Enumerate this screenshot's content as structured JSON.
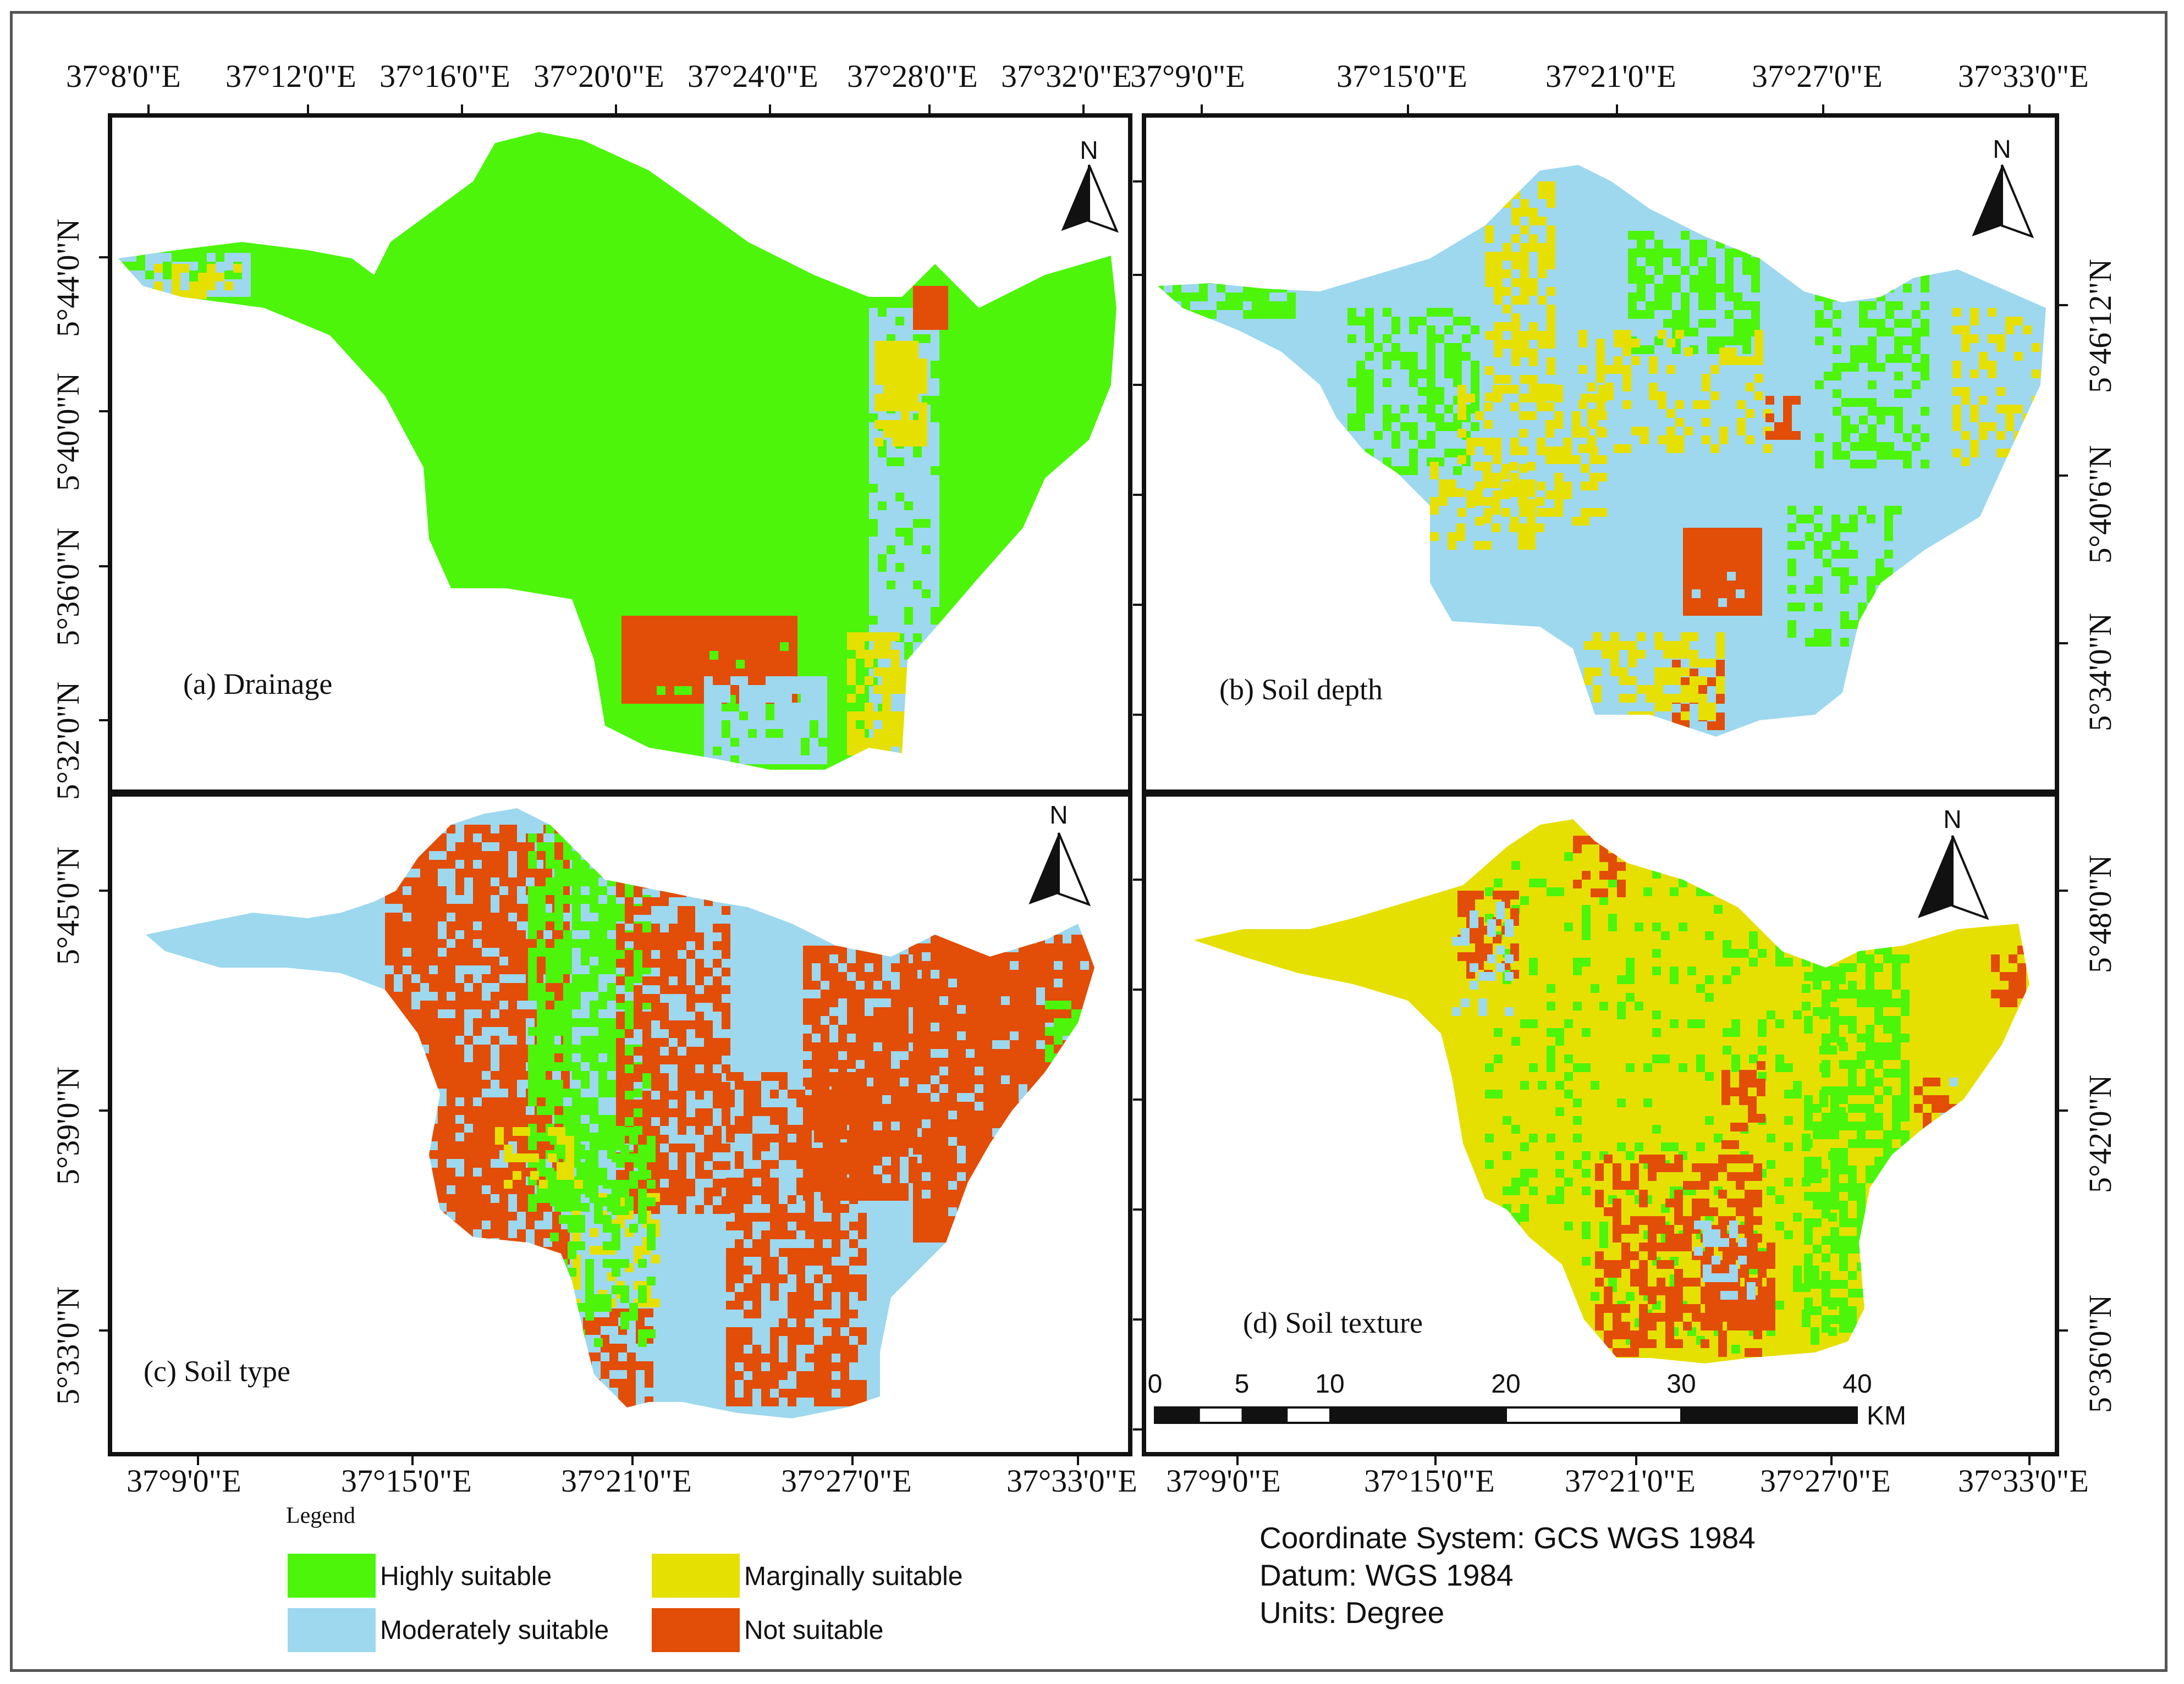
{
  "colors": {
    "highly": "#4cf50a",
    "moderately": "#9dd8ee",
    "marginally": "#e6e002",
    "not": "#e24d07",
    "frame": "#111111"
  },
  "panels": [
    {
      "id": "a",
      "caption": "(a) Drainage",
      "north": "N",
      "base": "highly"
    },
    {
      "id": "b",
      "caption": "(b) Soil depth",
      "north": "N",
      "base": "moderately"
    },
    {
      "id": "c",
      "caption": "(c) Soil type",
      "north": "N",
      "base": "moderately"
    },
    {
      "id": "d",
      "caption": "(d) Soil texture",
      "north": "N",
      "base": "marginally"
    }
  ],
  "top_axis_left": [
    "37°8'0\"E",
    "37°12'0\"E",
    "37°16'0\"E",
    "37°20'0\"E",
    "37°24'0\"E",
    "37°28'0\"E",
    "37°32'0\"E"
  ],
  "top_axis_right": [
    "37°9'0\"E",
    "37°15'0\"E",
    "37°21'0\"E",
    "37°27'0\"E",
    "37°33'0\"E"
  ],
  "bottom_axis_left": [
    "37°9'0\"E",
    "37°15'0\"E",
    "37°21'0\"E",
    "37°27'0\"E",
    "37°33'0\"E"
  ],
  "bottom_axis_right": [
    "37°9'0\"E",
    "37°15'0\"E",
    "37°21'0\"E",
    "37°27'0\"E",
    "37°33'0\"E"
  ],
  "left_axis_top": [
    "5°44'0\"N",
    "5°40'0\"N",
    "5°36'0\"N",
    "5°32'0\"N"
  ],
  "left_axis_bottom": [
    "5°45'0\"N",
    "5°39'0\"N",
    "5°33'0\"N"
  ],
  "right_axis_top": [
    "5°46'12\"N",
    "5°40'6\"N",
    "5°34'0\"N"
  ],
  "right_axis_bottom": [
    "5°48'0\"N",
    "5°42'0\"N",
    "5°36'0\"N"
  ],
  "legend": {
    "title": "Legend",
    "items": [
      {
        "label": "Highly suitable",
        "color_key": "highly"
      },
      {
        "label": "Marginally suitable",
        "color_key": "marginally"
      },
      {
        "label": "Moderately suitable",
        "color_key": "moderately"
      },
      {
        "label": "Not suitable",
        "color_key": "not"
      }
    ]
  },
  "scale_bar": {
    "ticks": [
      "0",
      "5",
      "10",
      "20",
      "30",
      "40"
    ],
    "unit": "KM"
  },
  "info": {
    "coordinate_system": "Coordinate System: GCS WGS 1984",
    "datum": "Datum: WGS 1984",
    "units": "Units: Degree"
  }
}
